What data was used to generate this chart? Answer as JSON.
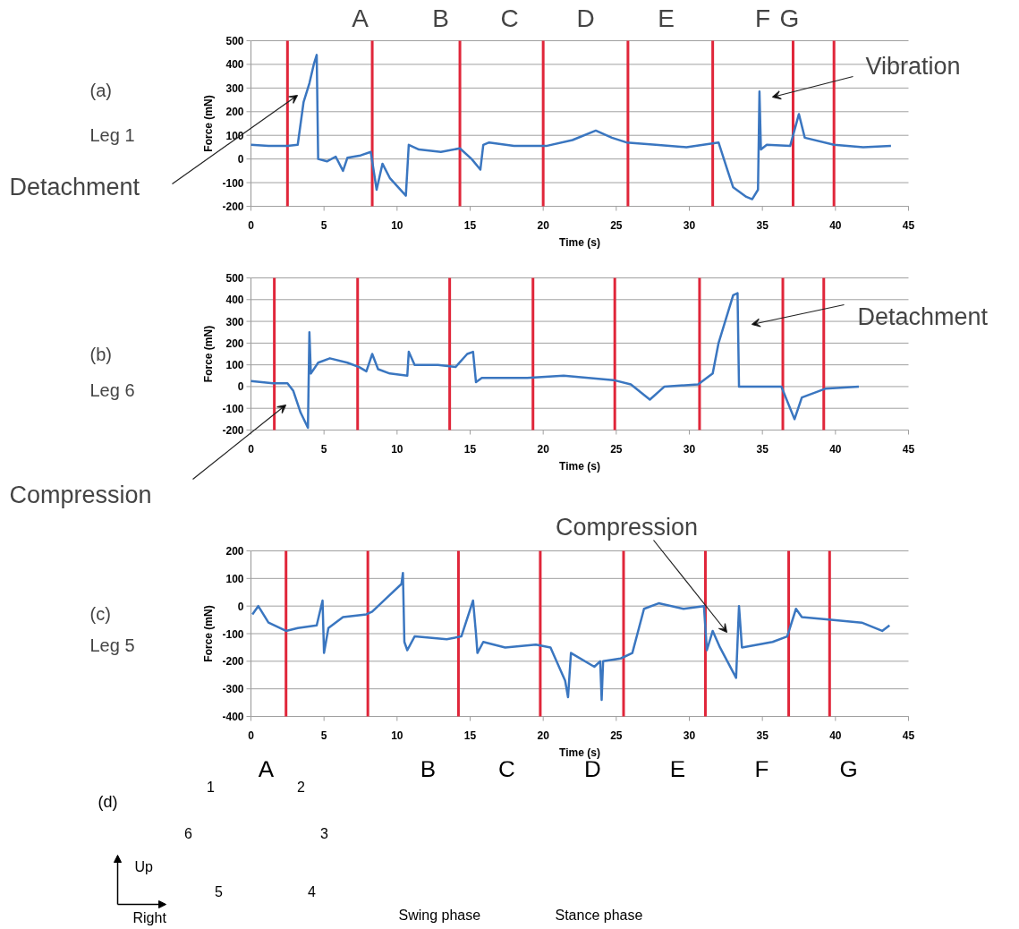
{
  "chart_data": [
    {
      "type": "line",
      "xlabel": "Time (s)",
      "ylabel": "Force (mN)",
      "xlim": [
        0,
        45
      ],
      "ylim": [
        -200,
        500
      ],
      "xticks": [
        0,
        5,
        10,
        15,
        20,
        25,
        30,
        35,
        40,
        45
      ],
      "yticks": [
        -200,
        -100,
        0,
        100,
        200,
        300,
        400,
        500
      ],
      "grid": "y",
      "series": [
        {
          "color": "#3a76c0",
          "x": [
            0,
            1.2,
            2.5,
            3.2,
            3.4,
            3.6,
            4.0,
            4.3,
            4.5,
            4.6,
            5.2,
            5.8,
            6.3,
            6.6,
            7.5,
            8.2,
            8.6,
            9.0,
            9.5,
            10.6,
            10.8,
            11.5,
            13.0,
            14.3,
            15.1,
            15.7,
            15.9,
            16.3,
            18.0,
            20.2,
            22.0,
            23.6,
            24.7,
            25.7,
            27.7,
            29.8,
            32.0,
            32.6,
            33.0,
            33.9,
            34.3,
            34.7,
            34.8,
            34.9,
            35.3,
            36.9,
            37.5,
            37.9,
            39.9,
            41.9,
            43.8
          ],
          "values": [
            60,
            55,
            55,
            60,
            150,
            240,
            320,
            400,
            440,
            0,
            -10,
            10,
            -50,
            5,
            15,
            30,
            -130,
            -20,
            -80,
            -155,
            60,
            40,
            30,
            45,
            0,
            -45,
            60,
            70,
            55,
            55,
            80,
            120,
            90,
            70,
            60,
            50,
            70,
            -45,
            -120,
            -160,
            -170,
            -130,
            285,
            40,
            60,
            55,
            190,
            90,
            60,
            50,
            55
          ]
        }
      ],
      "ref_lines": [
        {
          "axis": "x",
          "value": 2.5,
          "color": "#e0263a"
        },
        {
          "axis": "x",
          "value": 8.3,
          "color": "#e0263a"
        },
        {
          "axis": "x",
          "value": 14.3,
          "color": "#e0263a"
        },
        {
          "axis": "x",
          "value": 20.0,
          "color": "#e0263a"
        },
        {
          "axis": "x",
          "value": 25.8,
          "color": "#e0263a"
        },
        {
          "axis": "x",
          "value": 31.6,
          "color": "#e0263a"
        },
        {
          "axis": "x",
          "value": 37.1,
          "color": "#e0263a"
        },
        {
          "axis": "x",
          "value": 39.9,
          "color": "#e0263a"
        }
      ],
      "annotations": [
        "(a)",
        "Leg 1",
        "A",
        "B",
        "C",
        "D",
        "E",
        "F",
        "G",
        "Detachment",
        "Vibration"
      ]
    },
    {
      "type": "line",
      "xlabel": "Time (s)",
      "ylabel": "Force (mN)",
      "xlim": [
        0,
        45
      ],
      "ylim": [
        -200,
        500
      ],
      "xticks": [
        0,
        5,
        10,
        15,
        20,
        25,
        30,
        35,
        40,
        45
      ],
      "yticks": [
        -200,
        -100,
        0,
        100,
        200,
        300,
        400,
        500
      ],
      "grid": "y",
      "series": [
        {
          "color": "#3a76c0",
          "x": [
            0,
            1.5,
            2.5,
            2.9,
            3.4,
            3.9,
            4.0,
            4.1,
            4.6,
            5.4,
            6.6,
            7.4,
            7.9,
            8.3,
            8.7,
            9.5,
            10.7,
            10.8,
            11.2,
            12.8,
            14.0,
            14.8,
            15.2,
            15.4,
            15.8,
            18.9,
            21.4,
            24.8,
            26.0,
            27.3,
            28.3,
            30.6,
            31.6,
            32.0,
            33.0,
            33.3,
            33.4,
            36.3,
            37.2,
            37.7,
            39.3,
            41.6
          ],
          "values": [
            25,
            15,
            15,
            -20,
            -120,
            -190,
            250,
            60,
            110,
            130,
            110,
            90,
            70,
            150,
            80,
            60,
            50,
            160,
            100,
            100,
            90,
            150,
            160,
            20,
            40,
            40,
            50,
            30,
            10,
            -60,
            0,
            10,
            60,
            200,
            420,
            430,
            0,
            0,
            -150,
            -50,
            -10,
            0
          ]
        }
      ],
      "ref_lines": [
        {
          "axis": "x",
          "value": 1.6,
          "color": "#e0263a"
        },
        {
          "axis": "x",
          "value": 7.3,
          "color": "#e0263a"
        },
        {
          "axis": "x",
          "value": 13.6,
          "color": "#e0263a"
        },
        {
          "axis": "x",
          "value": 19.3,
          "color": "#e0263a"
        },
        {
          "axis": "x",
          "value": 24.9,
          "color": "#e0263a"
        },
        {
          "axis": "x",
          "value": 30.7,
          "color": "#e0263a"
        },
        {
          "axis": "x",
          "value": 36.4,
          "color": "#e0263a"
        },
        {
          "axis": "x",
          "value": 39.2,
          "color": "#e0263a"
        }
      ],
      "annotations": [
        "(b)",
        "Leg 6",
        "Compression",
        "Detachment"
      ]
    },
    {
      "type": "line",
      "xlabel": "Time (s)",
      "ylabel": "Force (mN)",
      "xlim": [
        0,
        45
      ],
      "ylim": [
        -400,
        200
      ],
      "xticks": [
        0,
        5,
        10,
        15,
        20,
        25,
        30,
        35,
        40,
        45
      ],
      "yticks": [
        -400,
        -300,
        -200,
        -100,
        0,
        100,
        200
      ],
      "grid": "y",
      "series": [
        {
          "color": "#3a76c0",
          "x": [
            0.1,
            0.5,
            1.2,
            2.4,
            3.2,
            4.5,
            4.9,
            5.0,
            5.3,
            6.3,
            7.9,
            8.3,
            9.3,
            10.3,
            10.4,
            10.5,
            10.7,
            11.2,
            13.4,
            14.4,
            15.2,
            15.4,
            15.5,
            15.9,
            17.4,
            19.5,
            20.5,
            21.5,
            21.7,
            21.9,
            23.5,
            23.9,
            24.0,
            24.1,
            25.3,
            26.1,
            26.9,
            27.9,
            29.6,
            31.0,
            31.2,
            31.6,
            32.1,
            33.2,
            33.4,
            33.6,
            35.7,
            36.7,
            37.3,
            37.7,
            39.7,
            41.8,
            43.2,
            43.7
          ],
          "values": [
            -30,
            0,
            -60,
            -90,
            -80,
            -70,
            20,
            -170,
            -80,
            -40,
            -30,
            -20,
            30,
            80,
            120,
            -130,
            -160,
            -110,
            -120,
            -110,
            20,
            -100,
            -170,
            -130,
            -150,
            -140,
            -150,
            -270,
            -330,
            -170,
            -220,
            -200,
            -340,
            -200,
            -190,
            -170,
            -10,
            10,
            -10,
            0,
            -160,
            -90,
            -150,
            -260,
            0,
            -150,
            -130,
            -110,
            -10,
            -40,
            -50,
            -60,
            -90,
            -70
          ]
        }
      ],
      "ref_lines": [
        {
          "axis": "x",
          "value": 2.4,
          "color": "#e0263a"
        },
        {
          "axis": "x",
          "value": 8.0,
          "color": "#e0263a"
        },
        {
          "axis": "x",
          "value": 14.2,
          "color": "#e0263a"
        },
        {
          "axis": "x",
          "value": 19.8,
          "color": "#e0263a"
        },
        {
          "axis": "x",
          "value": 25.5,
          "color": "#e0263a"
        },
        {
          "axis": "x",
          "value": 31.1,
          "color": "#e0263a"
        },
        {
          "axis": "x",
          "value": 36.8,
          "color": "#e0263a"
        },
        {
          "axis": "x",
          "value": 39.6,
          "color": "#e0263a"
        }
      ],
      "annotations": [
        "(c)",
        "Leg 5",
        "Compression"
      ]
    },
    {
      "type": "other",
      "categories": [
        "A",
        "B",
        "C",
        "D",
        "E",
        "F",
        "G"
      ],
      "annotations": [
        "(d)",
        "1",
        "2",
        "3",
        "4",
        "5",
        "6",
        "Up",
        "Right",
        "Swing phase",
        "Stance phase"
      ]
    }
  ]
}
